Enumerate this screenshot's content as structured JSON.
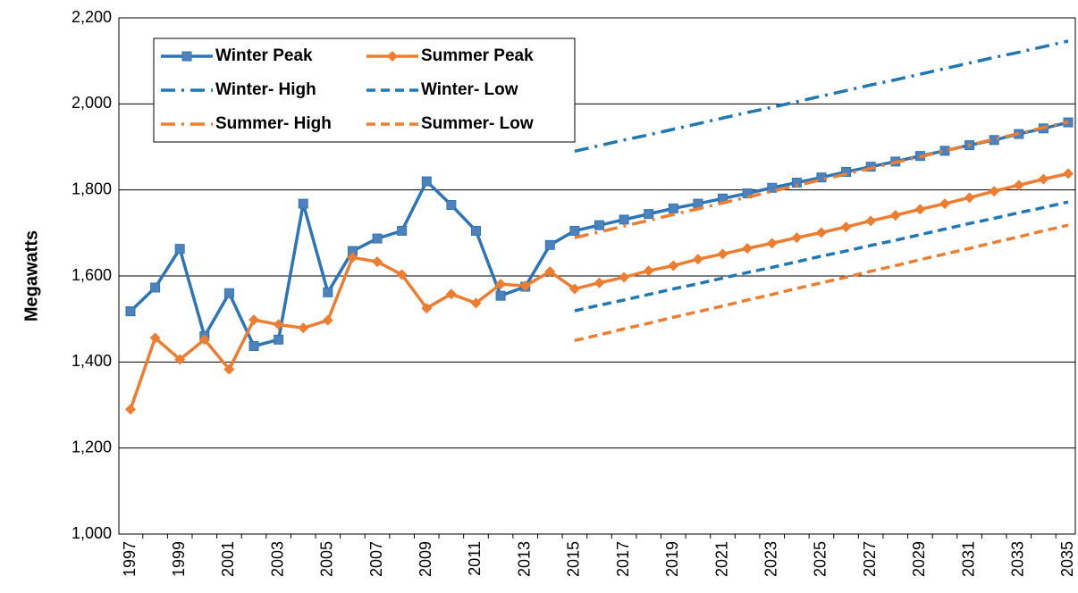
{
  "chart_data": {
    "type": "line",
    "ylabel": "Megawatts",
    "categories": [
      "1997",
      null,
      "1999",
      null,
      "2001",
      null,
      "2003",
      null,
      "2005",
      null,
      "2007",
      null,
      "2009",
      null,
      "2011",
      null,
      "2013",
      null,
      "2015",
      null,
      "2017",
      null,
      "2019",
      null,
      "2021",
      null,
      "2023",
      null,
      "2025",
      null,
      "2027",
      null,
      "2029",
      null,
      "2031",
      null,
      "2033",
      null,
      "2035"
    ],
    "ylim": [
      1000,
      2200
    ],
    "yticks": [
      {
        "value": 1000,
        "label": "1,000"
      },
      {
        "value": 1200,
        "label": "1,200"
      },
      {
        "value": 1400,
        "label": "1,400"
      },
      {
        "value": 1600,
        "label": "1,600"
      },
      {
        "value": 1800,
        "label": "1,800"
      },
      {
        "value": 2000,
        "label": "2,000"
      },
      {
        "value": 2200,
        "label": "2,200"
      }
    ],
    "grid": true,
    "legend": "upper left",
    "series": [
      {
        "name": "Winter Peak",
        "color": "#2e75b6",
        "style": "solid",
        "marker": "square",
        "values": [
          1518,
          1573,
          1663,
          1460,
          1560,
          1437,
          1452,
          1768,
          1562,
          1658,
          1687,
          1705,
          1820,
          1765,
          1705,
          1554,
          1575,
          1672,
          1705,
          1718,
          1731,
          1744,
          1757,
          1768,
          1780,
          1792,
          1805,
          1817,
          1829,
          1842,
          1854,
          1866,
          1879,
          1891,
          1904,
          1916,
          1930,
          1943,
          1957
        ]
      },
      {
        "name": "Summer Peak",
        "color": "#ed7d31",
        "style": "solid",
        "marker": "diamond",
        "values": [
          1290,
          1456,
          1406,
          1452,
          1383,
          1498,
          1487,
          1479,
          1497,
          1643,
          1633,
          1603,
          1525,
          1558,
          1537,
          1581,
          1577,
          1610,
          1570,
          1584,
          1597,
          1612,
          1624,
          1639,
          1651,
          1664,
          1676,
          1689,
          1701,
          1714,
          1728,
          1741,
          1755,
          1768,
          1782,
          1797,
          1811,
          1825,
          1838
        ]
      },
      {
        "name": "Winter- High",
        "color": "#1f77b4",
        "style": "dashdot",
        "values": [
          null,
          null,
          null,
          null,
          null,
          null,
          null,
          null,
          null,
          null,
          null,
          null,
          null,
          null,
          null,
          null,
          null,
          null,
          1890,
          1903,
          1916,
          1928,
          1941,
          1954,
          1967,
          1980,
          1992,
          2005,
          2018,
          2031,
          2044,
          2056,
          2069,
          2082,
          2095,
          2108,
          2120,
          2133,
          2146
        ]
      },
      {
        "name": "Winter- Low",
        "color": "#1f77b4",
        "style": "dash",
        "values": [
          null,
          null,
          null,
          null,
          null,
          null,
          null,
          null,
          null,
          null,
          null,
          null,
          null,
          null,
          null,
          null,
          null,
          null,
          1519,
          1532,
          1544,
          1557,
          1570,
          1582,
          1595,
          1608,
          1620,
          1633,
          1646,
          1658,
          1671,
          1683,
          1696,
          1709,
          1722,
          1734,
          1747,
          1759,
          1772
        ]
      },
      {
        "name": "Summer- High",
        "color": "#ed7d31",
        "style": "dashdot",
        "values": [
          null,
          null,
          null,
          null,
          null,
          null,
          null,
          null,
          null,
          null,
          null,
          null,
          null,
          null,
          null,
          null,
          null,
          null,
          1689,
          1702,
          1716,
          1729,
          1743,
          1756,
          1770,
          1783,
          1797,
          1810,
          1824,
          1837,
          1850,
          1864,
          1877,
          1891,
          1904,
          1918,
          1931,
          1945,
          1958
        ]
      },
      {
        "name": "Summer- Low",
        "color": "#ed7d31",
        "style": "dash",
        "values": [
          null,
          null,
          null,
          null,
          null,
          null,
          null,
          null,
          null,
          null,
          null,
          null,
          null,
          null,
          null,
          null,
          null,
          null,
          1450,
          1463,
          1477,
          1490,
          1504,
          1517,
          1530,
          1544,
          1557,
          1571,
          1584,
          1597,
          1611,
          1624,
          1638,
          1651,
          1664,
          1678,
          1691,
          1705,
          1718
        ]
      }
    ]
  }
}
